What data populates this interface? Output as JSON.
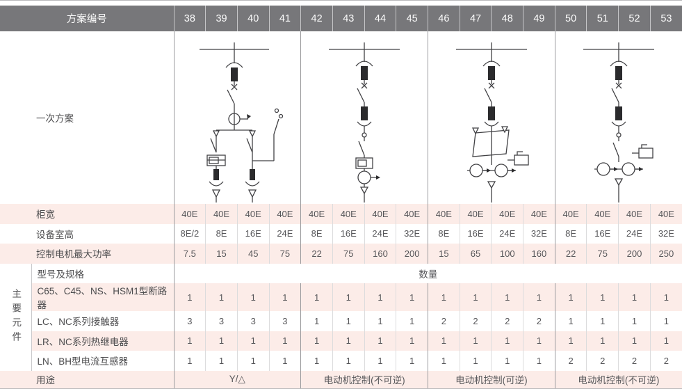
{
  "header": {
    "title": "方案编号",
    "schemes": [
      "38",
      "39",
      "40",
      "41",
      "42",
      "43",
      "44",
      "45",
      "46",
      "47",
      "48",
      "49",
      "50",
      "51",
      "52",
      "53"
    ]
  },
  "primary_scheme": {
    "label": "一次方案",
    "diagrams": [
      {
        "name": "star-delta-starter-diagram",
        "type": "yd"
      },
      {
        "name": "motor-nonreversible-diagram",
        "type": "dol"
      },
      {
        "name": "motor-reversible-diagram",
        "type": "rev"
      },
      {
        "name": "motor-nonreversible-2ct-diagram",
        "type": "dol2"
      }
    ]
  },
  "rows": [
    {
      "label": "柜宽",
      "values": [
        "40E",
        "40E",
        "40E",
        "40E",
        "40E",
        "40E",
        "40E",
        "40E",
        "40E",
        "40E",
        "40E",
        "40E",
        "40E",
        "40E",
        "40E",
        "40E"
      ]
    },
    {
      "label": "设备室高",
      "values": [
        "8E/2",
        "8E",
        "16E",
        "24E",
        "8E",
        "16E",
        "24E",
        "32E",
        "8E",
        "16E",
        "24E",
        "32E",
        "8E",
        "16E",
        "24E",
        "32E"
      ]
    },
    {
      "label": "控制电机最大功率",
      "values": [
        "7.5",
        "15",
        "45",
        "75",
        "22",
        "75",
        "160",
        "200",
        "15",
        "65",
        "100",
        "160",
        "22",
        "75",
        "200",
        "250"
      ]
    }
  ],
  "spec_row": {
    "label": "型号及规格",
    "quantity_label": "数量"
  },
  "component_group_label": "主要元件",
  "component_rows": [
    {
      "label": "C65、C45、NS、HSM1型断路器",
      "values": [
        "1",
        "1",
        "1",
        "1",
        "1",
        "1",
        "1",
        "1",
        "1",
        "1",
        "1",
        "1",
        "1",
        "1",
        "1",
        "1"
      ]
    },
    {
      "label": "LC、NC系列接触器",
      "values": [
        "3",
        "3",
        "3",
        "3",
        "1",
        "1",
        "1",
        "1",
        "2",
        "2",
        "2",
        "2",
        "1",
        "1",
        "1",
        "1"
      ]
    },
    {
      "label": "LR、NC系列热继电器",
      "values": [
        "1",
        "1",
        "1",
        "1",
        "1",
        "1",
        "1",
        "1",
        "1",
        "1",
        "1",
        "1",
        "1",
        "1",
        "1",
        "1"
      ]
    },
    {
      "label": "LN、BH型电流互感器",
      "values": [
        "1",
        "1",
        "1",
        "1",
        "1",
        "1",
        "1",
        "1",
        "1",
        "1",
        "1",
        "1",
        "2",
        "2",
        "2",
        "2"
      ]
    }
  ],
  "usage_row": {
    "label": "用途",
    "values": [
      "Y/△",
      "电动机控制(不可逆)",
      "电动机控制(可逆)",
      "电动机控制(不可逆)"
    ]
  },
  "colors": {
    "header_bg": "#77777a",
    "row_pink": "#fcece8",
    "grid_light": "#dcdcdd",
    "grid_group": "#9b9b9e",
    "frame": "#b9b9bb",
    "text": "#4c4c4e"
  }
}
